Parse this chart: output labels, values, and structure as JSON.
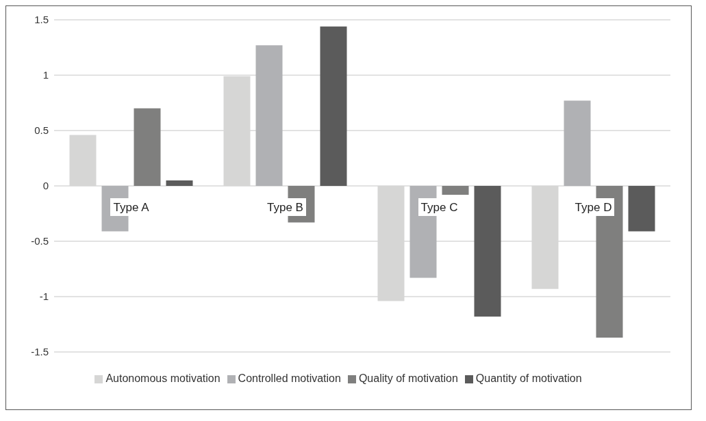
{
  "chart_data": {
    "type": "bar",
    "categories": [
      "Type A",
      "Type B",
      "Type C",
      "Type D"
    ],
    "series": [
      {
        "name": "Autonomous motivation",
        "color": "#d6d6d5",
        "values": [
          0.46,
          0.99,
          -1.04,
          -0.93
        ]
      },
      {
        "name": "Controlled motivation",
        "color": "#b0b1b4",
        "values": [
          -0.41,
          1.27,
          -0.83,
          0.77
        ]
      },
      {
        "name": "Quality of motivation",
        "color": "#7f7f7e",
        "values": [
          0.7,
          -0.33,
          -0.08,
          -1.37
        ]
      },
      {
        "name": "Quantity of motivation",
        "color": "#5b5b5b",
        "values": [
          0.05,
          1.44,
          -1.18,
          -0.41
        ]
      }
    ],
    "ylim": [
      -1.5,
      1.5
    ],
    "yticks": [
      -1.5,
      -1,
      -0.5,
      0,
      0.5,
      1,
      1.5
    ],
    "grid": "y",
    "legend": "bottom"
  }
}
